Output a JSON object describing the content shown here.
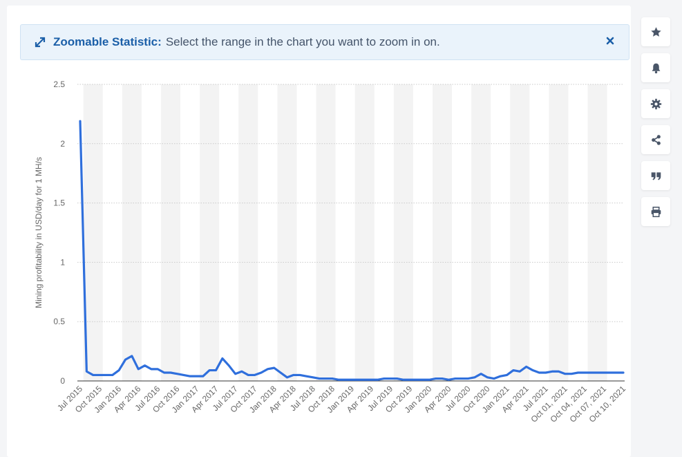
{
  "banner": {
    "title": "Zoomable Statistic:",
    "text": "Select the range in the chart you want to zoom in on."
  },
  "sidebar": {
    "items": [
      {
        "icon": "star-icon",
        "label": "Favorite"
      },
      {
        "icon": "bell-icon",
        "label": "Notifications"
      },
      {
        "icon": "gear-icon",
        "label": "Settings"
      },
      {
        "icon": "share-icon",
        "label": "Share"
      },
      {
        "icon": "quote-icon",
        "label": "Cite"
      },
      {
        "icon": "print-icon",
        "label": "Print"
      }
    ]
  },
  "colors": {
    "line": "#2f6fdc",
    "band": "#f3f3f3",
    "accent": "#1b5fa8"
  },
  "chart_data": {
    "type": "line",
    "title": "",
    "xlabel": "",
    "ylabel": "Mining profitability in USD/day for 1 MH/s",
    "ylim": [
      0,
      2.5
    ],
    "yticks": [
      0,
      0.5,
      1,
      1.5,
      2,
      2.5
    ],
    "grid": true,
    "categories": [
      "Jul 2015",
      "Aug 2015",
      "Sep 2015",
      "Oct 2015",
      "Nov 2015",
      "Dec 2015",
      "Jan 2016",
      "Feb 2016",
      "Mar 2016",
      "Apr 2016",
      "May 2016",
      "Jun 2016",
      "Jul 2016",
      "Aug 2016",
      "Sep 2016",
      "Oct 2016",
      "Nov 2016",
      "Dec 2016",
      "Jan 2017",
      "Feb 2017",
      "Mar 2017",
      "Apr 2017",
      "May 2017",
      "Jun 2017",
      "Jul 2017",
      "Aug 2017",
      "Sep 2017",
      "Oct 2017",
      "Nov 2017",
      "Dec 2017",
      "Jan 2018",
      "Feb 2018",
      "Mar 2018",
      "Apr 2018",
      "May 2018",
      "Jun 2018",
      "Jul 2018",
      "Aug 2018",
      "Sep 2018",
      "Oct 2018",
      "Nov 2018",
      "Dec 2018",
      "Jan 2019",
      "Feb 2019",
      "Mar 2019",
      "Apr 2019",
      "May 2019",
      "Jun 2019",
      "Jul 2019",
      "Aug 2019",
      "Sep 2019",
      "Oct 2019",
      "Nov 2019",
      "Dec 2019",
      "Jan 2020",
      "Feb 2020",
      "Mar 2020",
      "Apr 2020",
      "May 2020",
      "Jun 2020",
      "Jul 2020",
      "Aug 2020",
      "Sep 2020",
      "Oct 2020",
      "Nov 2020",
      "Dec 2020",
      "Jan 2021",
      "Feb 2021",
      "Mar 2021",
      "Apr 2021",
      "May 2021",
      "Jun 2021",
      "Jul 2021",
      "Aug 2021",
      "Sep 2021",
      "Oct 01, 2021",
      "Oct 02, 2021",
      "Oct 03, 2021",
      "Oct 04, 2021",
      "Oct 05, 2021",
      "Oct 06, 2021",
      "Oct 07, 2021",
      "Oct 08, 2021",
      "Oct 09, 2021",
      "Oct 10, 2021"
    ],
    "labeled_ticks": [
      "Jul 2015",
      "Oct 2015",
      "Jan 2016",
      "Apr 2016",
      "Jul 2016",
      "Oct 2016",
      "Jan 2017",
      "Apr 2017",
      "Jul 2017",
      "Oct 2017",
      "Jan 2018",
      "Apr 2018",
      "Jul 2018",
      "Oct 2018",
      "Jan 2019",
      "Apr 2019",
      "Jul 2019",
      "Oct 2019",
      "Jan 2020",
      "Apr 2020",
      "Jul 2020",
      "Oct 2020",
      "Jan 2021",
      "Apr 2021",
      "Jul 2021",
      "Oct 01, 2021",
      "Oct 04, 2021",
      "Oct 07, 2021",
      "Oct 10, 2021"
    ],
    "series": [
      {
        "values": [
          2.19,
          0.08,
          0.05,
          0.05,
          0.05,
          0.05,
          0.09,
          0.18,
          0.21,
          0.1,
          0.13,
          0.1,
          0.1,
          0.07,
          0.07,
          0.06,
          0.05,
          0.04,
          0.04,
          0.04,
          0.09,
          0.09,
          0.19,
          0.13,
          0.06,
          0.08,
          0.05,
          0.05,
          0.07,
          0.1,
          0.11,
          0.07,
          0.03,
          0.05,
          0.05,
          0.04,
          0.03,
          0.02,
          0.02,
          0.02,
          0.01,
          0.01,
          0.01,
          0.01,
          0.01,
          0.01,
          0.01,
          0.02,
          0.02,
          0.02,
          0.01,
          0.01,
          0.01,
          0.01,
          0.01,
          0.02,
          0.02,
          0.01,
          0.02,
          0.02,
          0.02,
          0.03,
          0.06,
          0.03,
          0.02,
          0.04,
          0.05,
          0.09,
          0.08,
          0.12,
          0.09,
          0.07,
          0.07,
          0.08,
          0.08,
          0.06,
          0.06,
          0.07,
          0.07,
          0.07,
          0.07,
          0.07,
          0.07,
          0.07,
          0.07
        ]
      }
    ]
  }
}
